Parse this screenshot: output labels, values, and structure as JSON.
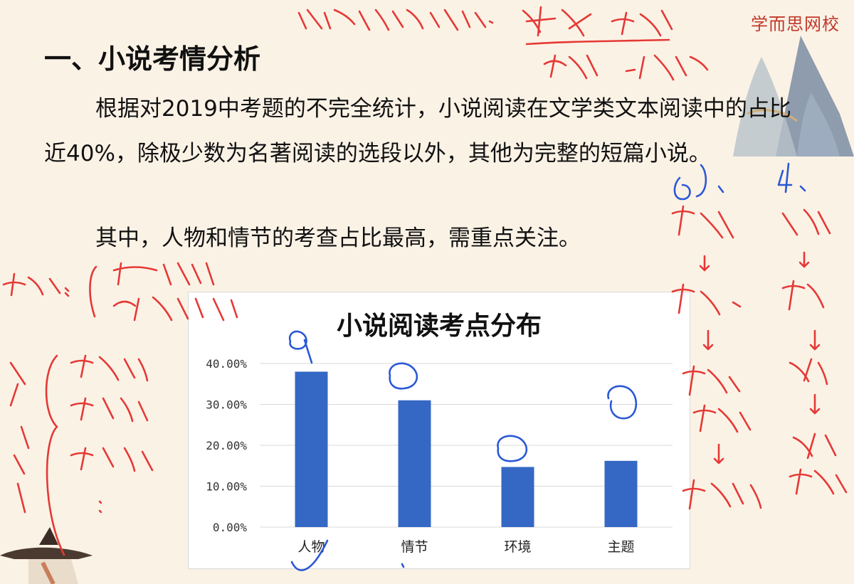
{
  "brand": {
    "name": "学而思网校"
  },
  "slide": {
    "heading": "一、小说考情分析",
    "paragraph1": "根据对2019中考题的不完全统计，小说阅读在文学类文本阅读中的占比近40%，除极少数为名著阅读的选段以外，其他为完整的短篇小说。",
    "paragraph2": "其中，人物和情节的考查占比最高，需重点关注。"
  },
  "chart_data": {
    "type": "bar",
    "title": "小说阅读考点分布",
    "categories": [
      "人物",
      "情节",
      "环境",
      "主题"
    ],
    "values": [
      38,
      31,
      14.7,
      16.2
    ],
    "ylim": [
      0,
      40
    ],
    "yticks": [
      "0.00%",
      "10.00%",
      "20.00%",
      "30.00%",
      "40.00%"
    ],
    "grid": true,
    "bar_color": "#3568c4",
    "xlabel": "",
    "ylabel": ""
  },
  "annotations": {
    "top_note": "四大文学体裁：散文、诗歌、戏剧、小说",
    "left_note_1": "开端：叙述性、非叙述性",
    "left_note_2": "表达方式：记叙文、说明文、议论文",
    "right_col_1": [
      "60%",
      "散文",
      "真实",
      "情感",
      "道理",
      "抒感词"
    ],
    "right_col_2": [
      "40%",
      "小说",
      "虚构",
      "人物",
      "人性",
      "现象"
    ],
    "bar_marks": [
      "1",
      "2",
      "3",
      "4"
    ]
  }
}
